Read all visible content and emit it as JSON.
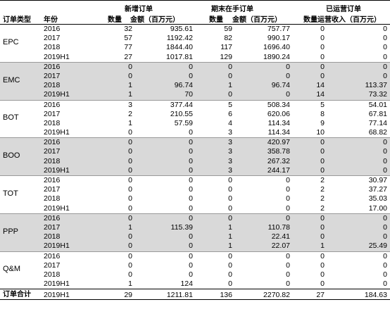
{
  "headers": {
    "order_type": "订单类型",
    "year": "年份",
    "new_orders": "新增订单",
    "backlog": "期末在手订单",
    "operating": "已运营订单",
    "count": "数量",
    "amount": "金额（百万元）",
    "count_b": "数量",
    "amount_b": "金额（百万元）",
    "op_cols": "数量运营收入（百万元）"
  },
  "groups": [
    {
      "type": "EPC",
      "shaded": false,
      "rows": [
        {
          "year": "2016",
          "new_n": "32",
          "new_amt": "935.61",
          "bl_n": "59",
          "bl_amt": "757.77",
          "op_n": "0",
          "op_rev": "0"
        },
        {
          "year": "2017",
          "new_n": "57",
          "new_amt": "1192.42",
          "bl_n": "82",
          "bl_amt": "990.17",
          "op_n": "0",
          "op_rev": "0"
        },
        {
          "year": "2018",
          "new_n": "77",
          "new_amt": "1844.40",
          "bl_n": "117",
          "bl_amt": "1696.40",
          "op_n": "0",
          "op_rev": "0"
        },
        {
          "year": "2019H1",
          "new_n": "27",
          "new_amt": "1017.81",
          "bl_n": "129",
          "bl_amt": "1890.24",
          "op_n": "0",
          "op_rev": "0"
        }
      ]
    },
    {
      "type": "EMC",
      "shaded": true,
      "rows": [
        {
          "year": "2016",
          "new_n": "0",
          "new_amt": "0",
          "bl_n": "0",
          "bl_amt": "0",
          "op_n": "0",
          "op_rev": "0"
        },
        {
          "year": "2017",
          "new_n": "0",
          "new_amt": "0",
          "bl_n": "0",
          "bl_amt": "0",
          "op_n": "0",
          "op_rev": "0"
        },
        {
          "year": "2018",
          "new_n": "1",
          "new_amt": "96.74",
          "bl_n": "1",
          "bl_amt": "96.74",
          "op_n": "14",
          "op_rev": "113.37"
        },
        {
          "year": "2019H1",
          "new_n": "1",
          "new_amt": "70",
          "bl_n": "0",
          "bl_amt": "0",
          "op_n": "14",
          "op_rev": "73.32"
        }
      ]
    },
    {
      "type": "BOT",
      "shaded": false,
      "rows": [
        {
          "year": "2016",
          "new_n": "3",
          "new_amt": "377.44",
          "bl_n": "5",
          "bl_amt": "508.34",
          "op_n": "5",
          "op_rev": "54.01"
        },
        {
          "year": "2017",
          "new_n": "2",
          "new_amt": "210.55",
          "bl_n": "6",
          "bl_amt": "620.06",
          "op_n": "8",
          "op_rev": "67.81"
        },
        {
          "year": "2018",
          "new_n": "1",
          "new_amt": "57.59",
          "bl_n": "4",
          "bl_amt": "114.34",
          "op_n": "9",
          "op_rev": "77.14"
        },
        {
          "year": "2019H1",
          "new_n": "0",
          "new_amt": "0",
          "bl_n": "3",
          "bl_amt": "114.34",
          "op_n": "10",
          "op_rev": "68.82"
        }
      ]
    },
    {
      "type": "BOO",
      "shaded": true,
      "rows": [
        {
          "year": "2016",
          "new_n": "0",
          "new_amt": "0",
          "bl_n": "3",
          "bl_amt": "420.97",
          "op_n": "0",
          "op_rev": "0"
        },
        {
          "year": "2017",
          "new_n": "0",
          "new_amt": "0",
          "bl_n": "3",
          "bl_amt": "358.78",
          "op_n": "0",
          "op_rev": "0"
        },
        {
          "year": "2018",
          "new_n": "0",
          "new_amt": "0",
          "bl_n": "3",
          "bl_amt": "267.32",
          "op_n": "0",
          "op_rev": "0"
        },
        {
          "year": "2019H1",
          "new_n": "0",
          "new_amt": "0",
          "bl_n": "3",
          "bl_amt": "244.17",
          "op_n": "0",
          "op_rev": "0"
        }
      ]
    },
    {
      "type": "TOT",
      "shaded": false,
      "rows": [
        {
          "year": "2016",
          "new_n": "0",
          "new_amt": "0",
          "bl_n": "0",
          "bl_amt": "0",
          "op_n": "2",
          "op_rev": "30.97"
        },
        {
          "year": "2017",
          "new_n": "0",
          "new_amt": "0",
          "bl_n": "0",
          "bl_amt": "0",
          "op_n": "2",
          "op_rev": "37.27"
        },
        {
          "year": "2018",
          "new_n": "0",
          "new_amt": "0",
          "bl_n": "0",
          "bl_amt": "0",
          "op_n": "2",
          "op_rev": "35.03"
        },
        {
          "year": "2019H1",
          "new_n": "0",
          "new_amt": "0",
          "bl_n": "0",
          "bl_amt": "0",
          "op_n": "2",
          "op_rev": "17.00"
        }
      ]
    },
    {
      "type": "PPP",
      "shaded": true,
      "rows": [
        {
          "year": "2016",
          "new_n": "0",
          "new_amt": "0",
          "bl_n": "0",
          "bl_amt": "0",
          "op_n": "0",
          "op_rev": "0"
        },
        {
          "year": "2017",
          "new_n": "1",
          "new_amt": "115.39",
          "bl_n": "1",
          "bl_amt": "110.78",
          "op_n": "0",
          "op_rev": "0"
        },
        {
          "year": "2018",
          "new_n": "0",
          "new_amt": "0",
          "bl_n": "1",
          "bl_amt": "22.41",
          "op_n": "0",
          "op_rev": "0"
        },
        {
          "year": "2019H1",
          "new_n": "0",
          "new_amt": "0",
          "bl_n": "1",
          "bl_amt": "22.07",
          "op_n": "1",
          "op_rev": "25.49"
        }
      ]
    },
    {
      "type": "Q&M",
      "shaded": false,
      "rows": [
        {
          "year": "2016",
          "new_n": "0",
          "new_amt": "0",
          "bl_n": "0",
          "bl_amt": "0",
          "op_n": "0",
          "op_rev": "0"
        },
        {
          "year": "2017",
          "new_n": "0",
          "new_amt": "0",
          "bl_n": "0",
          "bl_amt": "0",
          "op_n": "0",
          "op_rev": "0"
        },
        {
          "year": "2018",
          "new_n": "0",
          "new_amt": "0",
          "bl_n": "0",
          "bl_amt": "0",
          "op_n": "0",
          "op_rev": "0"
        },
        {
          "year": "2019H1",
          "new_n": "1",
          "new_amt": "124",
          "bl_n": "0",
          "bl_amt": "0",
          "op_n": "0",
          "op_rev": "0"
        }
      ]
    }
  ],
  "total": {
    "label": "订单合计",
    "year": "2019H1",
    "new_n": "29",
    "new_amt": "1211.81",
    "bl_n": "136",
    "bl_amt": "2270.82",
    "op_n": "27",
    "op_rev": "184.63"
  },
  "colors": {
    "shade": "#d9d9d9",
    "rule": "#000000"
  }
}
